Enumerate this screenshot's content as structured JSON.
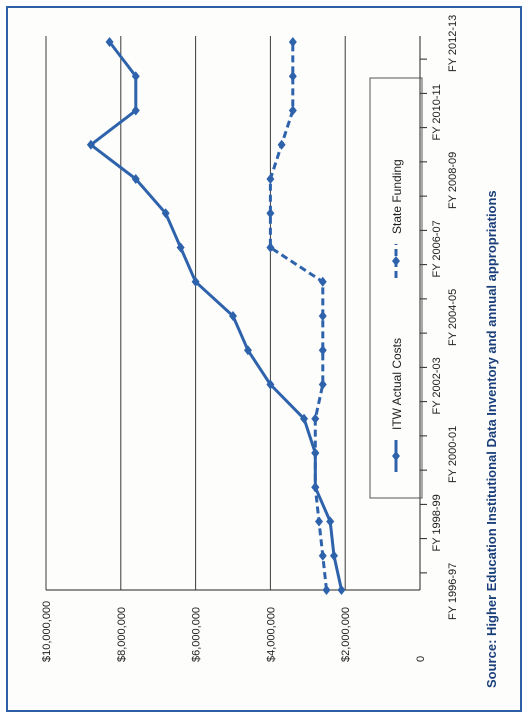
{
  "chart_data": {
    "type": "line",
    "orientation": "rotated-90",
    "categories": [
      "FY 1996-97",
      "FY 1997-98",
      "FY 1998-99",
      "FY 1999-00",
      "FY 2000-01",
      "FY 2001-02",
      "FY 2002-03",
      "FY 2003-04",
      "FY 2004-05",
      "FY 2005-06",
      "FY 2006-07",
      "FY 2007-08",
      "FY 2008-09",
      "FY 2009-10",
      "FY 2010-11",
      "FY 2011-12",
      "FY 2012-13"
    ],
    "tick_labels": [
      "FY 1996-97",
      "FY 1998-99",
      "FY 2000-01",
      "FY 2002-03",
      "FY 2004-05",
      "FY 2006-07",
      "FY 2008-09",
      "FY 2010-11",
      "FY 2012-13"
    ],
    "y_tick_labels": [
      "0",
      "$2,000,000",
      "$4,000,000",
      "$6,000,000",
      "$8,000,000",
      "$10,000,000"
    ],
    "ylim": [
      0,
      10000000
    ],
    "grid": true,
    "legend_position": "bottom",
    "series": [
      {
        "name": "ITW Actual Costs",
        "color": "#2e63ac",
        "style": "solid",
        "values": [
          2100000,
          2300000,
          2400000,
          2800000,
          2800000,
          3100000,
          4000000,
          4600000,
          5000000,
          6000000,
          6400000,
          6800000,
          7600000,
          8800000,
          7600000,
          7600000,
          8300000
        ]
      },
      {
        "name": "State Funding",
        "color": "#2e63ac",
        "style": "dashed",
        "values": [
          2500000,
          2600000,
          2700000,
          2800000,
          2800000,
          2800000,
          2600000,
          2600000,
          2600000,
          2600000,
          4000000,
          4000000,
          4000000,
          3700000,
          3400000,
          3400000,
          3400000
        ]
      }
    ]
  },
  "source_text": "Source: Higher Education Institutional Data Inventory and annual appropriations"
}
